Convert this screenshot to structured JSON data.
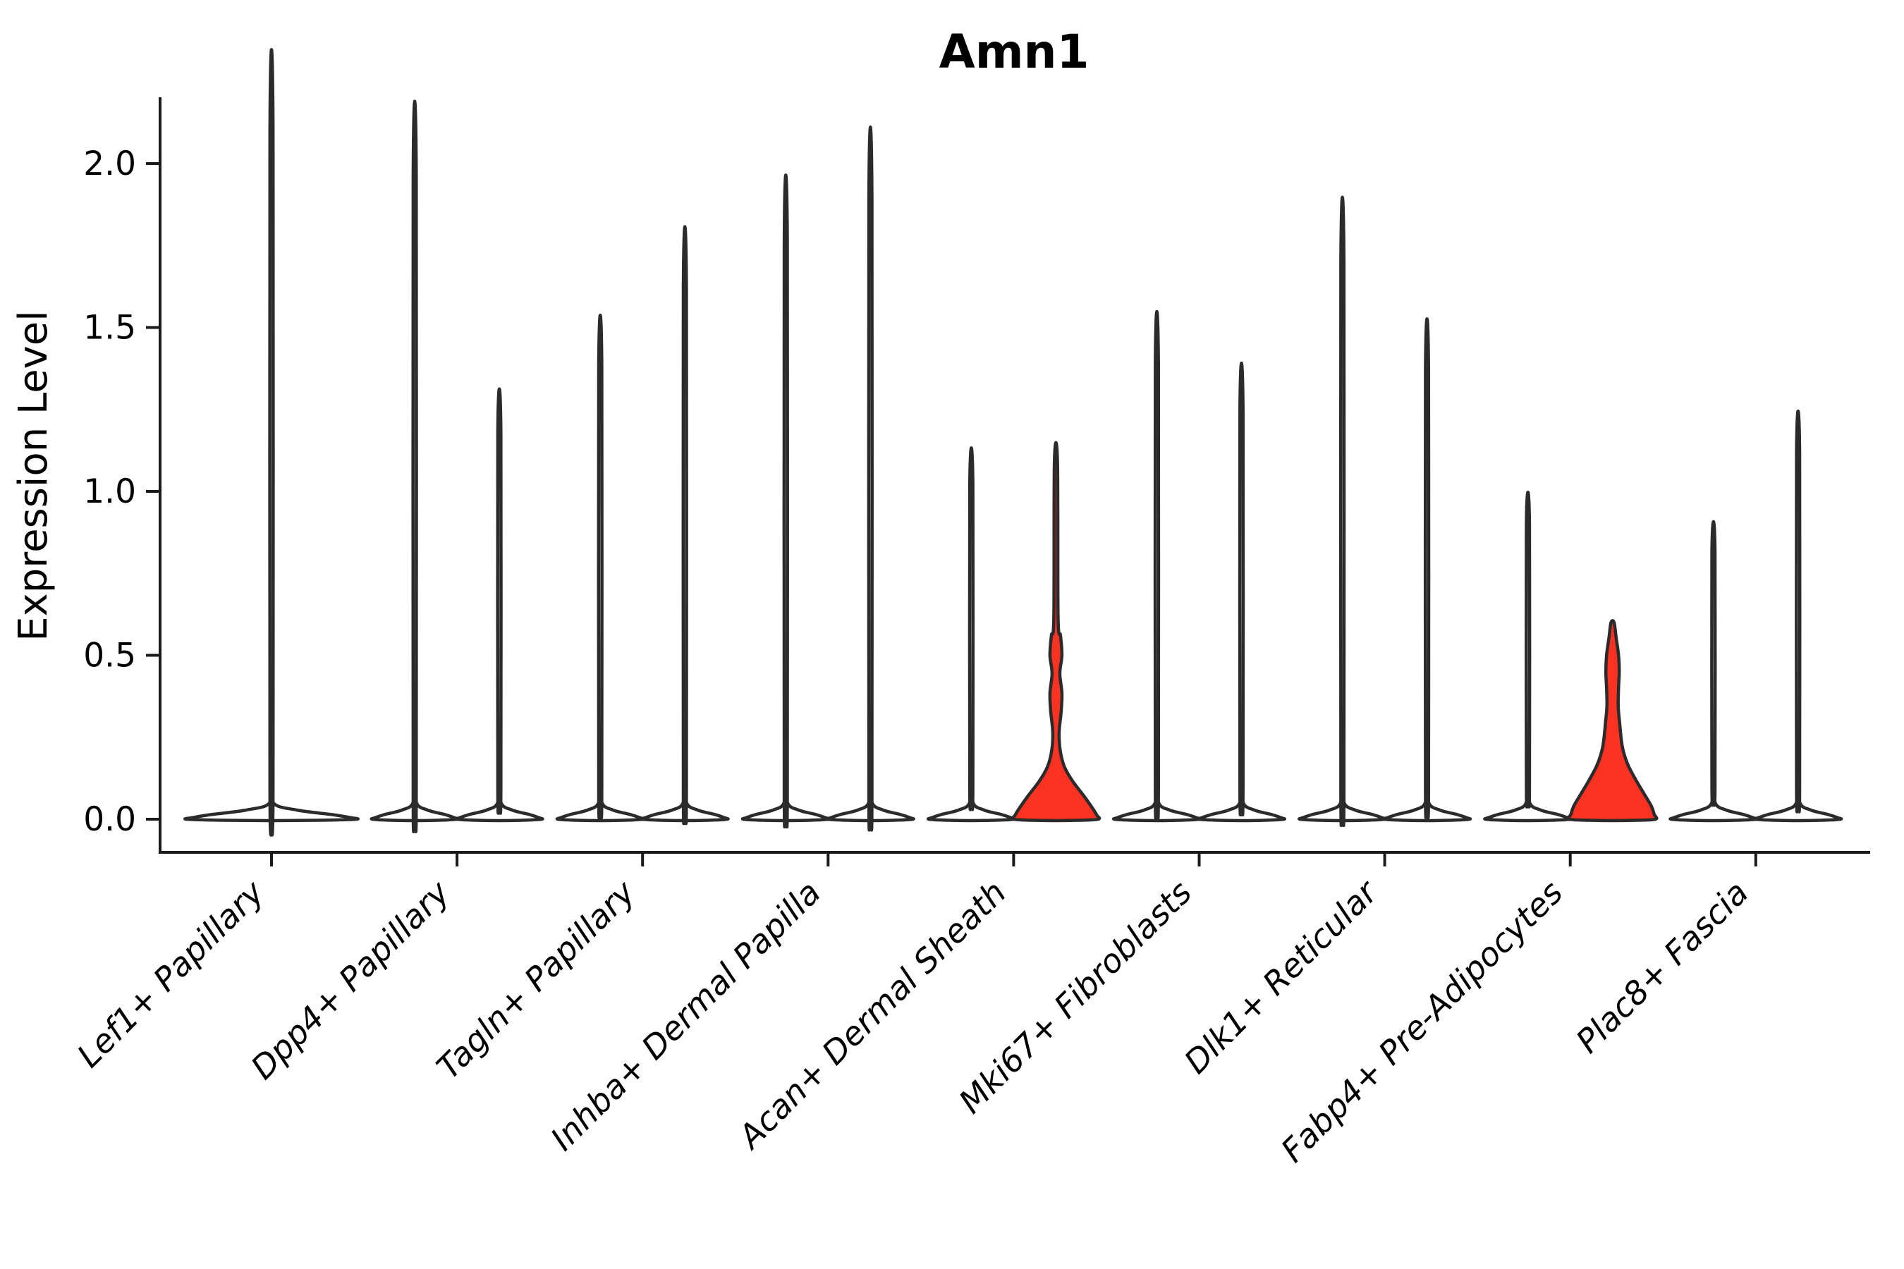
{
  "title": "Amn1",
  "y_axis": {
    "label": "Expression Level",
    "tick_labels": [
      "0.0",
      "0.5",
      "1.0",
      "1.5",
      "2.0"
    ],
    "tick_values": [
      0.0,
      0.5,
      1.0,
      1.5,
      2.0
    ]
  },
  "colors": {
    "highlight_red": "#f93222",
    "violin_outline": "#2b2b2b",
    "axis": "#1a1a1a",
    "background": "#ffffff",
    "plain_fill": "#ffffff"
  },
  "chart_data": {
    "type": "violin",
    "title": "Amn1",
    "xlabel": "",
    "ylabel": "Expression Level",
    "ylim": [
      -0.105,
      2.205
    ],
    "yticks": [
      0.0,
      0.5,
      1.0,
      1.5,
      2.0
    ],
    "grid": false,
    "legend": "none",
    "categories": [
      "Lef1+ Papillary",
      "Dpp4+ Papillary",
      "Tagln+ Papillary",
      "Inhba+ Dermal Papilla",
      "Acan+ Dermal Sheath",
      "Mki67+ Fibroblasts",
      "Dlk1+ Reticular",
      "Fabp4+ Pre-Adipocytes",
      "Plac8+ Fascia"
    ],
    "violins": [
      {
        "category_index": 0,
        "category": "Lef1+ Papillary",
        "position": "center",
        "max_expression": 2.1,
        "fill": "plain"
      },
      {
        "category_index": 1,
        "category": "Dpp4+ Papillary",
        "position": "left",
        "max_expression": 1.96,
        "fill": "plain"
      },
      {
        "category_index": 1,
        "category": "Dpp4+ Papillary",
        "position": "right",
        "max_expression": 1.18,
        "fill": "plain"
      },
      {
        "category_index": 2,
        "category": "Tagln+ Papillary",
        "position": "left",
        "max_expression": 1.38,
        "fill": "plain"
      },
      {
        "category_index": 2,
        "category": "Tagln+ Papillary",
        "position": "right",
        "max_expression": 1.62,
        "fill": "plain"
      },
      {
        "category_index": 3,
        "category": "Inhba+ Dermal Papilla",
        "position": "left",
        "max_expression": 1.76,
        "fill": "plain"
      },
      {
        "category_index": 3,
        "category": "Inhba+ Dermal Papilla",
        "position": "right",
        "max_expression": 1.89,
        "fill": "plain"
      },
      {
        "category_index": 4,
        "category": "Acan+ Dermal Sheath",
        "position": "left",
        "max_expression": 1.02,
        "fill": "plain"
      },
      {
        "category_index": 4,
        "category": "Acan+ Dermal Sheath",
        "position": "right",
        "max_expression": 1.09,
        "fill": "red",
        "profile": [
          [
            1.09,
            2.2
          ],
          [
            0.62,
            3.0
          ],
          [
            0.56,
            6.5
          ],
          [
            0.5,
            8.5
          ],
          [
            0.445,
            5.5
          ],
          [
            0.385,
            8.5
          ],
          [
            0.33,
            7.5
          ],
          [
            0.265,
            4.5
          ],
          [
            0.21,
            6.0
          ],
          [
            0.16,
            12.0
          ],
          [
            0.115,
            24.0
          ],
          [
            0.07,
            40.0
          ],
          [
            0.03,
            53.0
          ],
          [
            0.012,
            58.0
          ],
          [
            0.0,
            60.0
          ]
        ]
      },
      {
        "category_index": 5,
        "category": "Mki67+ Fibroblasts",
        "position": "left",
        "max_expression": 1.39,
        "fill": "plain"
      },
      {
        "category_index": 5,
        "category": "Mki67+ Fibroblasts",
        "position": "right",
        "max_expression": 1.25,
        "fill": "plain"
      },
      {
        "category_index": 6,
        "category": "Dlk1+ Reticular",
        "position": "left",
        "max_expression": 1.7,
        "fill": "plain"
      },
      {
        "category_index": 6,
        "category": "Dlk1+ Reticular",
        "position": "right",
        "max_expression": 1.37,
        "fill": "plain"
      },
      {
        "category_index": 7,
        "category": "Fabp4+ Pre-Adipocytes",
        "position": "left",
        "max_expression": 0.9,
        "fill": "plain"
      },
      {
        "category_index": 7,
        "category": "Fabp4+ Pre-Adipocytes",
        "position": "right",
        "max_expression": 0.6,
        "fill": "red",
        "profile": [
          [
            0.6,
            2.2
          ],
          [
            0.555,
            5.0
          ],
          [
            0.5,
            8.5
          ],
          [
            0.45,
            9.5
          ],
          [
            0.4,
            8.5
          ],
          [
            0.345,
            8.0
          ],
          [
            0.295,
            10.0
          ],
          [
            0.25,
            12.0
          ],
          [
            0.21,
            15.0
          ],
          [
            0.165,
            22.0
          ],
          [
            0.12,
            33.0
          ],
          [
            0.08,
            44.0
          ],
          [
            0.04,
            55.0
          ],
          [
            0.015,
            59.0
          ],
          [
            0.0,
            61.0
          ]
        ]
      },
      {
        "category_index": 8,
        "category": "Plac8+ Fascia",
        "position": "left",
        "max_expression": 0.82,
        "fill": "plain"
      },
      {
        "category_index": 8,
        "category": "Plac8+ Fascia",
        "position": "right",
        "max_expression": 1.12,
        "fill": "plain"
      }
    ]
  }
}
